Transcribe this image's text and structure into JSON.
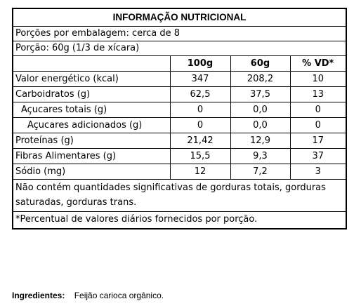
{
  "label": {
    "title": "INFORMAÇÃO NUTRICIONAL",
    "servings_per_package": "Porções por embalagem: cerca de 8",
    "serving_size": "Porção: 60g (1/3 de xícara)",
    "columns": [
      "",
      "100g",
      "60g",
      "% VD*"
    ],
    "rows": [
      {
        "name": "Valor energético (kcal)",
        "per100": "347",
        "per_serving": "208,2",
        "vd": "10",
        "indent": 0
      },
      {
        "name": "Carboidratos (g)",
        "per100": "62,5",
        "per_serving": "37,5",
        "vd": "13",
        "indent": 0
      },
      {
        "name": "Açucares totais (g)",
        "per100": "0",
        "per_serving": "0,0",
        "vd": "0",
        "indent": 1
      },
      {
        "name": "Açucares adicionados (g)",
        "per100": "0",
        "per_serving": "0,0",
        "vd": "0",
        "indent": 2
      },
      {
        "name": "Proteínas (g)",
        "per100": "21,42",
        "per_serving": "12,9",
        "vd": "17",
        "indent": 0
      },
      {
        "name": "Fibras Alimentares (g)",
        "per100": "15,5",
        "per_serving": "9,3",
        "vd": "37",
        "indent": 0
      },
      {
        "name": "Sódio (mg)",
        "per100": "12",
        "per_serving": "7,2",
        "vd": "3",
        "indent": 0
      }
    ],
    "note_insignificant": "Não contém quantidades significativas de gorduras totais, gorduras saturadas, gorduras trans.",
    "note_percent": "*Percentual de valores diários fornecidos por porção."
  },
  "ingredients": {
    "label": "Ingredientes:",
    "text": "Feijão carioca orgânico."
  }
}
